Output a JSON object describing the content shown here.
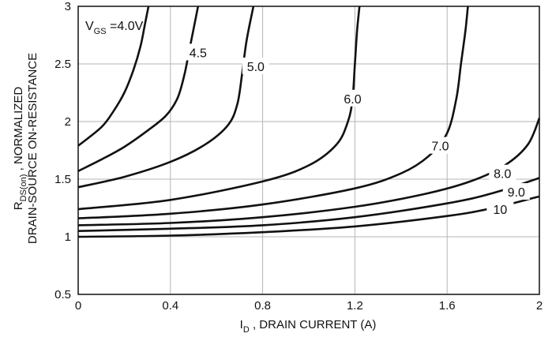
{
  "chart_data": {
    "type": "line",
    "title": "",
    "xlabel": {
      "main": "I",
      "sub": "D",
      "rest": " , DRAIN CURRENT (A)"
    },
    "ylabel": {
      "line1_main": "R",
      "line1_sub": "DS(on)",
      "line1_rest": " , NORMALIZED",
      "line2": "DRAIN-SOURCE ON-RESISTANCE"
    },
    "xlim": [
      0,
      2
    ],
    "ylim": [
      0.5,
      3
    ],
    "xticks": [
      0,
      0.4,
      0.8,
      1.2,
      1.6,
      2
    ],
    "xtick_labels": [
      "0",
      "0.4",
      "0.8",
      "1.2",
      "1.6",
      "2"
    ],
    "yticks": [
      0.5,
      1,
      1.5,
      2,
      2.5,
      3
    ],
    "ytick_labels": [
      "0.5",
      "1",
      "1.5",
      "2",
      "2.5",
      "3"
    ],
    "grid": true,
    "legend_note": {
      "main": "V",
      "sub": "GS",
      "rest": " =4.0V"
    },
    "series": [
      {
        "name": "",
        "label": "",
        "points": [
          [
            0,
            1.79
          ],
          [
            0.1,
            1.95
          ],
          [
            0.15,
            2.08
          ],
          [
            0.2,
            2.25
          ],
          [
            0.24,
            2.45
          ],
          [
            0.27,
            2.65
          ],
          [
            0.29,
            2.85
          ],
          [
            0.305,
            3.0
          ]
        ]
      },
      {
        "name": "",
        "label": "4.5",
        "points": [
          [
            0,
            1.57
          ],
          [
            0.1,
            1.67
          ],
          [
            0.2,
            1.78
          ],
          [
            0.3,
            1.92
          ],
          [
            0.38,
            2.05
          ],
          [
            0.43,
            2.2
          ],
          [
            0.46,
            2.4
          ],
          [
            0.48,
            2.6
          ],
          [
            0.5,
            2.8
          ],
          [
            0.52,
            3.0
          ]
        ]
      },
      {
        "name": "",
        "label": "5.0",
        "points": [
          [
            0,
            1.43
          ],
          [
            0.2,
            1.52
          ],
          [
            0.4,
            1.65
          ],
          [
            0.55,
            1.8
          ],
          [
            0.65,
            1.97
          ],
          [
            0.69,
            2.15
          ],
          [
            0.71,
            2.4
          ],
          [
            0.73,
            2.7
          ],
          [
            0.76,
            3.0
          ]
        ]
      },
      {
        "name": "",
        "label": "6.0",
        "points": [
          [
            0,
            1.24
          ],
          [
            0.4,
            1.32
          ],
          [
            0.8,
            1.48
          ],
          [
            1.0,
            1.62
          ],
          [
            1.12,
            1.8
          ],
          [
            1.17,
            2.0
          ],
          [
            1.19,
            2.2
          ],
          [
            1.2,
            2.5
          ],
          [
            1.21,
            2.8
          ],
          [
            1.22,
            3.0
          ]
        ]
      },
      {
        "name": "",
        "label": "7.0",
        "points": [
          [
            0,
            1.16
          ],
          [
            0.4,
            1.2
          ],
          [
            0.8,
            1.28
          ],
          [
            1.2,
            1.42
          ],
          [
            1.4,
            1.55
          ],
          [
            1.52,
            1.7
          ],
          [
            1.6,
            1.9
          ],
          [
            1.64,
            2.2
          ],
          [
            1.66,
            2.5
          ],
          [
            1.68,
            2.8
          ],
          [
            1.69,
            3.0
          ]
        ]
      },
      {
        "name": "",
        "label": "8.0",
        "points": [
          [
            0,
            1.1
          ],
          [
            0.4,
            1.12
          ],
          [
            0.8,
            1.17
          ],
          [
            1.2,
            1.26
          ],
          [
            1.5,
            1.37
          ],
          [
            1.7,
            1.48
          ],
          [
            1.85,
            1.62
          ],
          [
            1.95,
            1.8
          ],
          [
            2.0,
            2.03
          ]
        ]
      },
      {
        "name": "",
        "label": "9.0",
        "points": [
          [
            0,
            1.05
          ],
          [
            0.4,
            1.07
          ],
          [
            0.8,
            1.1
          ],
          [
            1.2,
            1.17
          ],
          [
            1.6,
            1.29
          ],
          [
            1.8,
            1.38
          ],
          [
            2.0,
            1.51
          ]
        ]
      },
      {
        "name": "",
        "label": "10",
        "points": [
          [
            0,
            1.0
          ],
          [
            0.4,
            1.01
          ],
          [
            0.8,
            1.04
          ],
          [
            1.2,
            1.09
          ],
          [
            1.6,
            1.18
          ],
          [
            1.8,
            1.25
          ],
          [
            2.0,
            1.35
          ]
        ]
      }
    ]
  }
}
